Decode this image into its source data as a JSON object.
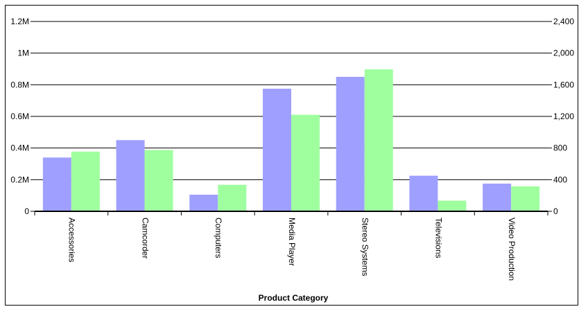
{
  "chart_data": {
    "type": "bar",
    "title": "",
    "xlabel": "Product Category",
    "ylabel": "",
    "y2label": "",
    "categories": [
      "Accessories",
      "Camcorder",
      "Computers",
      "Media Player",
      "Stereo Systems",
      "Televisions",
      "Video Production"
    ],
    "series": [
      {
        "axis": "left",
        "color": "#9f9fff",
        "values": [
          340000,
          450000,
          105000,
          775000,
          850000,
          225000,
          175000
        ]
      },
      {
        "axis": "right",
        "color": "#9fff9f",
        "values": [
          755,
          775,
          335,
          1220,
          1795,
          135,
          315
        ]
      }
    ],
    "ylim": [
      0,
      1200000
    ],
    "y2lim": [
      0,
      2400
    ],
    "y_ticks": [
      {
        "value": 0,
        "label": "0"
      },
      {
        "value": 200000,
        "label": "0.2M"
      },
      {
        "value": 400000,
        "label": "0.4M"
      },
      {
        "value": 600000,
        "label": "0.6M"
      },
      {
        "value": 800000,
        "label": "0.8M"
      },
      {
        "value": 1000000,
        "label": "1M"
      },
      {
        "value": 1200000,
        "label": "1.2M"
      }
    ],
    "y2_ticks": [
      {
        "value": 0,
        "label": "0"
      },
      {
        "value": 400,
        "label": "400"
      },
      {
        "value": 800,
        "label": "800"
      },
      {
        "value": 1200,
        "label": "1,200"
      },
      {
        "value": 1600,
        "label": "1,600"
      },
      {
        "value": 2000,
        "label": "2,000"
      },
      {
        "value": 2400,
        "label": "2,400"
      }
    ],
    "grid": true,
    "legend": "none"
  }
}
